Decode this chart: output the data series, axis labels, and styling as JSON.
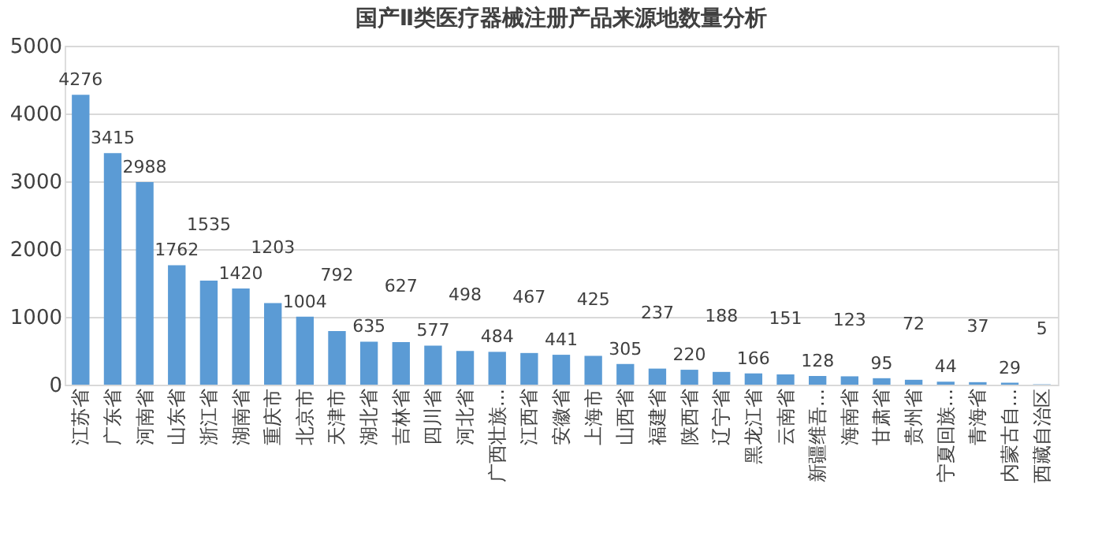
{
  "chart_data": {
    "type": "bar",
    "title": "国产Ⅱ类医疗器械注册产品来源地数量分析",
    "categories": [
      "江苏省",
      "广东省",
      "河南省",
      "山东省",
      "浙江省",
      "湖南省",
      "重庆市",
      "北京市",
      "天津市",
      "湖北省",
      "吉林省",
      "四川省",
      "河北省",
      "广西壮族...",
      "江西省",
      "安徽省",
      "上海市",
      "山西省",
      "福建省",
      "陕西省",
      "辽宁省",
      "黑龙江省",
      "云南省",
      "新疆维吾...",
      "海南省",
      "甘肃省",
      "贵州省",
      "宁夏回族...",
      "青海省",
      "内蒙古自...",
      "西藏自治区"
    ],
    "values": [
      4276,
      3415,
      2988,
      1762,
      1535,
      1420,
      1203,
      1004,
      792,
      635,
      627,
      577,
      498,
      484,
      467,
      441,
      425,
      305,
      237,
      220,
      188,
      166,
      151,
      128,
      123,
      95,
      72,
      44,
      37,
      29,
      5
    ],
    "color": "#5b9bd5",
    "ylim": [
      0,
      5000
    ],
    "yticks": [
      0,
      1000,
      2000,
      3000,
      4000,
      5000
    ],
    "grid": "y",
    "data_labels": true
  }
}
